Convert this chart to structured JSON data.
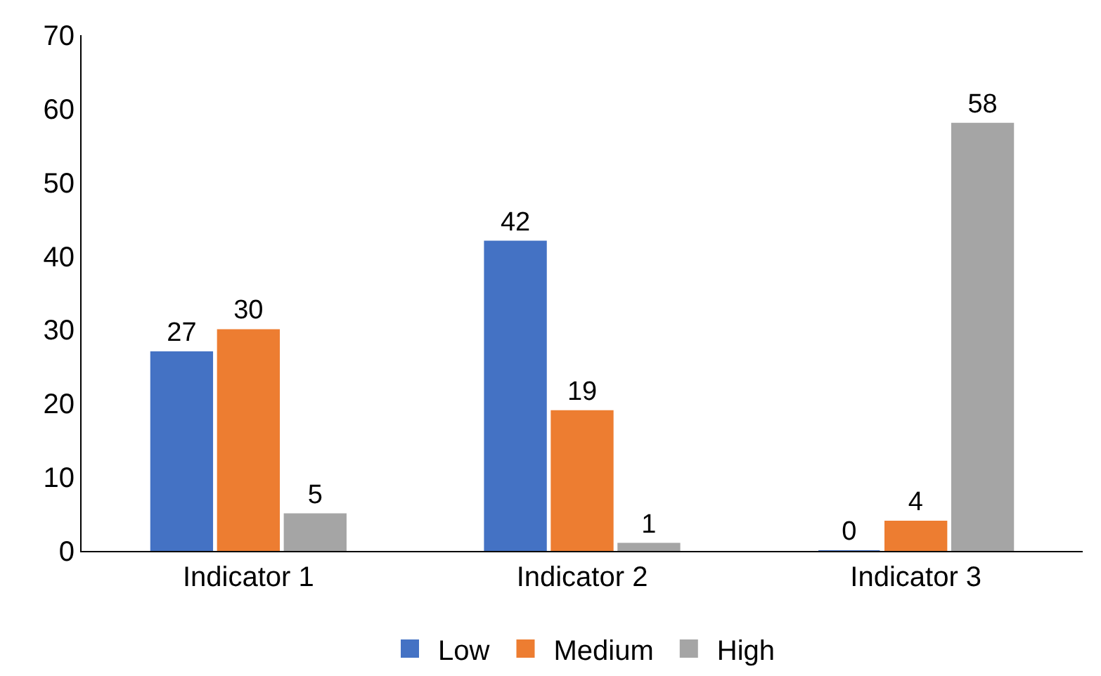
{
  "chart_data": {
    "type": "bar",
    "categories": [
      "Indicator 1",
      "Indicator 2",
      "Indicator 3"
    ],
    "series": [
      {
        "name": "Low",
        "color": "#4472c4",
        "values": [
          27,
          42,
          0
        ]
      },
      {
        "name": "Medium",
        "color": "#ed7d31",
        "values": [
          30,
          19,
          4
        ]
      },
      {
        "name": "High",
        "color": "#a5a5a5",
        "values": [
          5,
          1,
          58
        ]
      }
    ],
    "ylim": [
      0,
      70
    ],
    "yticks": [
      0,
      10,
      20,
      30,
      40,
      50,
      60,
      70
    ],
    "data_labels": true,
    "grid": false,
    "legend": "bottom"
  }
}
